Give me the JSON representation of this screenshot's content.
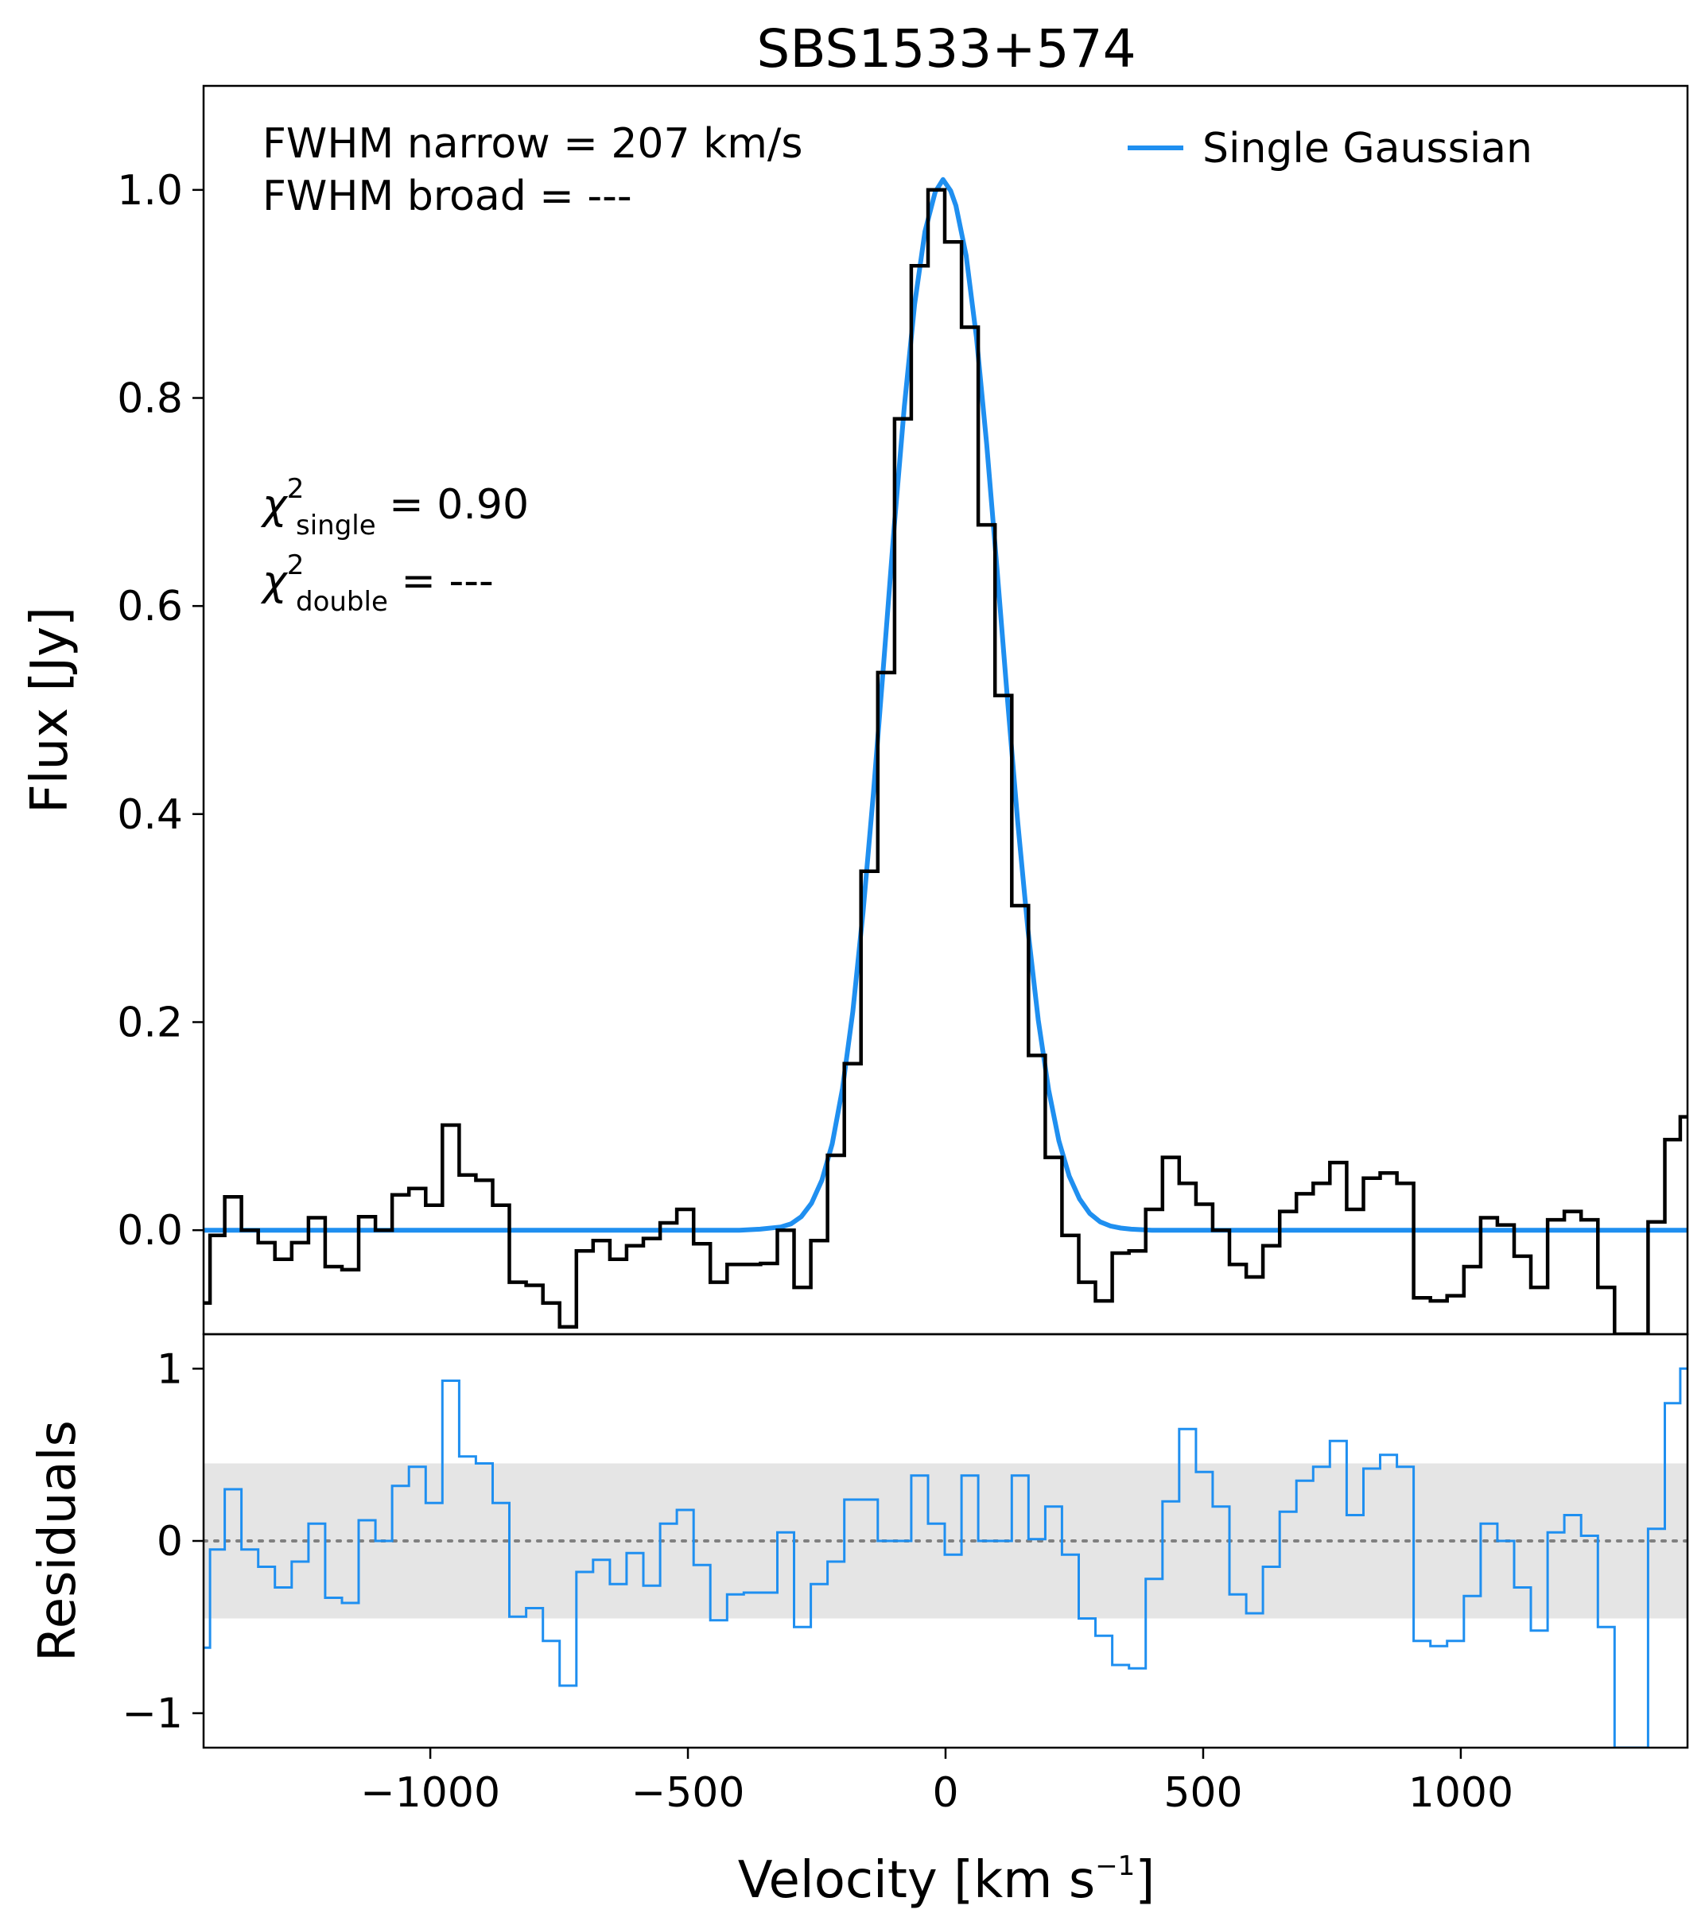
{
  "chart_data": [
    {
      "type": "line",
      "panel": "spectrum",
      "title": "SBS1533+574",
      "ylabel": "Flux [Jy]",
      "xlim": [
        -1440,
        1440
      ],
      "ylim": [
        -0.1,
        1.1
      ],
      "yticks": [
        0.0,
        0.2,
        0.4,
        0.6,
        0.8,
        1.0
      ],
      "ytick_labels": [
        "0.0",
        "0.2",
        "0.4",
        "0.6",
        "0.8",
        "1.0"
      ],
      "annotations": {
        "fwhm_narrow": "FWHM narrow = 207 km/s",
        "fwhm_broad": "FWHM broad = ---",
        "chi_symbol": "χ",
        "chi_sup": "2",
        "chi_single_sub": "single",
        "chi_single_value": " = 0.90",
        "chi_double_sub": "double",
        "chi_double_value": " = ---"
      },
      "legend": {
        "position": "top-right",
        "entries": [
          "Single Gaussian"
        ]
      },
      "colors": {
        "data": "#000000",
        "fit": "#1f8ff0"
      },
      "series": [
        {
          "name": "Data",
          "style": "steps-mid",
          "bin_width": 32.5,
          "x": [
            -1440,
            -1415,
            -1383,
            -1350,
            -1318,
            -1285,
            -1253,
            -1220,
            -1188,
            -1155,
            -1123,
            -1090,
            -1058,
            -1025,
            -993,
            -960,
            -928,
            -895,
            -863,
            -830,
            -798,
            -765,
            -733,
            -700,
            -668,
            -635,
            -603,
            -570,
            -538,
            -505,
            -473,
            -440,
            -408,
            -375,
            -343,
            -310,
            -278,
            -245,
            -213,
            -180,
            -148,
            -115,
            -83,
            -50,
            -18,
            15,
            47,
            80,
            112,
            145,
            177,
            210,
            242,
            275,
            307,
            340,
            372,
            405,
            437,
            470,
            502,
            535,
            567,
            600,
            632,
            665,
            697,
            730,
            762,
            795,
            827,
            860,
            892,
            925,
            957,
            990,
            1022,
            1055,
            1087,
            1120,
            1152,
            1185,
            1217,
            1250,
            1282,
            1315,
            1347,
            1380,
            1412,
            1440
          ],
          "values": [
            -0.07,
            -0.005,
            0.032,
            0.0,
            -0.012,
            -0.028,
            -0.012,
            0.012,
            -0.035,
            -0.038,
            0.013,
            0.0,
            0.034,
            0.04,
            0.024,
            0.101,
            0.053,
            0.048,
            0.024,
            -0.05,
            -0.053,
            -0.07,
            -0.093,
            -0.02,
            -0.01,
            -0.028,
            -0.015,
            -0.008,
            0.007,
            0.02,
            -0.013,
            -0.05,
            -0.033,
            -0.033,
            -0.032,
            0.0,
            -0.055,
            -0.01,
            0.072,
            0.16,
            0.345,
            0.536,
            0.78,
            0.927,
            1.0,
            0.95,
            0.868,
            0.678,
            0.514,
            0.312,
            0.168,
            0.07,
            -0.005,
            -0.05,
            -0.068,
            -0.022,
            -0.02,
            0.02,
            0.07,
            0.045,
            0.025,
            0.0,
            -0.033,
            -0.045,
            -0.015,
            0.018,
            0.035,
            0.045,
            0.065,
            0.02,
            0.05,
            0.055,
            0.045,
            -0.065,
            -0.068,
            -0.063,
            -0.035,
            0.012,
            0.005,
            -0.025,
            -0.055,
            0.01,
            0.018,
            0.01,
            -0.055,
            -0.1,
            -0.1,
            0.008,
            0.087,
            0.109
          ]
        },
        {
          "name": "Single Gaussian",
          "style": "line",
          "x": [
            -1440,
            -1400,
            -1300,
            -1200,
            -1100,
            -1000,
            -900,
            -800,
            -700,
            -600,
            -500,
            -450,
            -400,
            -360,
            -320,
            -300,
            -280,
            -260,
            -240,
            -220,
            -200,
            -180,
            -160,
            -140,
            -120,
            -100,
            -80,
            -60,
            -40,
            -20,
            -5,
            10,
            20,
            40,
            60,
            80,
            100,
            120,
            140,
            160,
            180,
            200,
            220,
            240,
            260,
            280,
            300,
            320,
            340,
            360,
            400,
            450,
            500,
            600,
            700,
            800,
            900,
            1000,
            1100,
            1200,
            1300,
            1400,
            1440
          ],
          "values": [
            0.0,
            0.0,
            0.0,
            0.0,
            0.0,
            0.0,
            0.0,
            0.0,
            0.0,
            0.0,
            0.0,
            0.0,
            0.0,
            0.001,
            0.003,
            0.006,
            0.013,
            0.026,
            0.048,
            0.083,
            0.136,
            0.21,
            0.306,
            0.42,
            0.546,
            0.674,
            0.792,
            0.89,
            0.96,
            0.998,
            1.01,
            0.999,
            0.985,
            0.937,
            0.858,
            0.755,
            0.635,
            0.511,
            0.393,
            0.288,
            0.202,
            0.135,
            0.086,
            0.052,
            0.03,
            0.016,
            0.008,
            0.004,
            0.002,
            0.001,
            0.0,
            0.0,
            0.0,
            0.0,
            0.0,
            0.0,
            0.0,
            0.0,
            0.0,
            0.0,
            0.0,
            0.0,
            0.0
          ]
        }
      ]
    },
    {
      "type": "line",
      "panel": "residuals",
      "xlabel": "Velocity [km s",
      "xlabel_sup": "−1",
      "xlabel_tail": "]",
      "ylabel": "Residuals",
      "xlim": [
        -1440,
        1440
      ],
      "ylim": [
        -1.2,
        1.2
      ],
      "xticks": [
        -1000,
        -500,
        0,
        500,
        1000
      ],
      "xtick_labels": [
        "−1000",
        "−500",
        "0",
        "500",
        "1000"
      ],
      "yticks": [
        -1,
        0,
        1
      ],
      "ytick_labels": [
        "−1",
        "0",
        "1"
      ],
      "band": [
        -0.45,
        0.45
      ],
      "zero_line": 0,
      "colors": {
        "residual": "#1f8ff0",
        "band": "#e5e5e5",
        "zero": "#808080"
      },
      "series": [
        {
          "name": "Residuals",
          "style": "steps-mid",
          "x": [
            -1440,
            -1415,
            -1383,
            -1350,
            -1318,
            -1285,
            -1253,
            -1220,
            -1188,
            -1155,
            -1123,
            -1090,
            -1058,
            -1025,
            -993,
            -960,
            -928,
            -895,
            -863,
            -830,
            -798,
            -765,
            -733,
            -700,
            -668,
            -635,
            -603,
            -570,
            -538,
            -505,
            -473,
            -440,
            -408,
            -375,
            -343,
            -310,
            -278,
            -245,
            -213,
            -180,
            -148,
            -115,
            -83,
            -50,
            -18,
            15,
            47,
            80,
            112,
            145,
            177,
            210,
            242,
            275,
            307,
            340,
            372,
            405,
            437,
            470,
            502,
            535,
            567,
            600,
            632,
            665,
            697,
            730,
            762,
            795,
            827,
            860,
            892,
            925,
            957,
            990,
            1022,
            1055,
            1087,
            1120,
            1152,
            1185,
            1217,
            1250,
            1282,
            1315,
            1347,
            1380,
            1412,
            1440
          ],
          "values": [
            -0.62,
            -0.05,
            0.3,
            -0.05,
            -0.15,
            -0.27,
            -0.12,
            0.1,
            -0.33,
            -0.36,
            0.12,
            0.0,
            0.32,
            0.43,
            0.22,
            0.93,
            0.49,
            0.45,
            0.22,
            -0.44,
            -0.39,
            -0.58,
            -0.84,
            -0.18,
            -0.11,
            -0.25,
            -0.07,
            -0.26,
            0.1,
            0.18,
            -0.14,
            -0.46,
            -0.31,
            -0.3,
            -0.3,
            0.05,
            -0.5,
            -0.25,
            -0.12,
            0.24,
            0.24,
            0.0,
            0.0,
            0.38,
            0.1,
            -0.08,
            0.38,
            0.0,
            0.0,
            0.38,
            0.01,
            0.2,
            -0.08,
            -0.45,
            -0.55,
            -0.72,
            -0.74,
            -0.22,
            0.23,
            0.65,
            0.4,
            0.2,
            -0.31,
            -0.42,
            -0.15,
            0.17,
            0.35,
            0.43,
            0.58,
            0.15,
            0.42,
            0.5,
            0.43,
            -0.58,
            -0.61,
            -0.58,
            -0.32,
            0.1,
            0.0,
            -0.27,
            -0.52,
            0.05,
            0.15,
            0.03,
            -0.5,
            -1.2,
            -1.2,
            0.07,
            0.8,
            1.0
          ]
        }
      ]
    }
  ]
}
